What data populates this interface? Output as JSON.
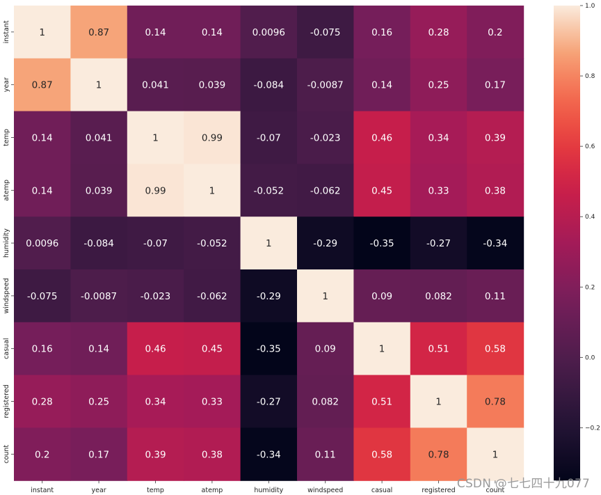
{
  "chart_data": {
    "type": "heatmap",
    "title": "",
    "xlabel": "",
    "ylabel": "",
    "row_labels": [
      "instant",
      "year",
      "temp",
      "atemp",
      "humidity",
      "windspeed",
      "casual",
      "registered",
      "count"
    ],
    "column_labels": [
      "instant",
      "year",
      "temp",
      "atemp",
      "humidity",
      "windspeed",
      "casual",
      "registered",
      "count"
    ],
    "values": [
      [
        1,
        0.87,
        0.14,
        0.14,
        0.0096,
        -0.075,
        0.16,
        0.28,
        0.2
      ],
      [
        0.87,
        1,
        0.041,
        0.039,
        -0.084,
        -0.0087,
        0.14,
        0.25,
        0.17
      ],
      [
        0.14,
        0.041,
        1,
        0.99,
        -0.07,
        -0.023,
        0.46,
        0.34,
        0.39
      ],
      [
        0.14,
        0.039,
        0.99,
        1,
        -0.052,
        -0.062,
        0.45,
        0.33,
        0.38
      ],
      [
        0.0096,
        -0.084,
        -0.07,
        -0.052,
        1,
        -0.29,
        -0.35,
        -0.27,
        -0.34
      ],
      [
        -0.075,
        -0.0087,
        -0.023,
        -0.062,
        -0.29,
        1,
        0.09,
        0.082,
        0.11
      ],
      [
        0.16,
        0.14,
        0.46,
        0.45,
        -0.35,
        0.09,
        1,
        0.51,
        0.58
      ],
      [
        0.28,
        0.25,
        0.34,
        0.33,
        -0.27,
        0.082,
        0.51,
        1,
        0.78
      ],
      [
        0.2,
        0.17,
        0.39,
        0.38,
        -0.34,
        0.11,
        0.58,
        0.78,
        1
      ]
    ],
    "cell_labels": [
      [
        "1",
        "0.87",
        "0.14",
        "0.14",
        "0.0096",
        "-0.075",
        "0.16",
        "0.28",
        "0.2"
      ],
      [
        "0.87",
        "1",
        "0.041",
        "0.039",
        "-0.084",
        "-0.0087",
        "0.14",
        "0.25",
        "0.17"
      ],
      [
        "0.14",
        "0.041",
        "1",
        "0.99",
        "-0.07",
        "-0.023",
        "0.46",
        "0.34",
        "0.39"
      ],
      [
        "0.14",
        "0.039",
        "0.99",
        "1",
        "-0.052",
        "-0.062",
        "0.45",
        "0.33",
        "0.38"
      ],
      [
        "0.0096",
        "-0.084",
        "-0.07",
        "-0.052",
        "1",
        "-0.29",
        "-0.35",
        "-0.27",
        "-0.34"
      ],
      [
        "-0.075",
        "-0.0087",
        "-0.023",
        "-0.062",
        "-0.29",
        "1",
        "0.09",
        "0.082",
        "0.11"
      ],
      [
        "0.16",
        "0.14",
        "0.46",
        "0.45",
        "-0.35",
        "0.09",
        "1",
        "0.51",
        "0.58"
      ],
      [
        "0.28",
        "0.25",
        "0.34",
        "0.33",
        "-0.27",
        "0.082",
        "0.51",
        "1",
        "0.78"
      ],
      [
        "0.2",
        "0.17",
        "0.39",
        "0.38",
        "-0.34",
        "0.11",
        "0.58",
        "0.78",
        "1"
      ]
    ],
    "colorbar": {
      "range": [
        -0.35,
        1.0
      ],
      "ticks": [
        1.0,
        0.8,
        0.6,
        0.4,
        0.2,
        0.0,
        -0.2
      ],
      "tick_labels": [
        "1.0",
        "0.8",
        "0.6",
        "0.4",
        "0.2",
        "0.0",
        "−0.2"
      ],
      "colormap": "rocket"
    },
    "grid": false,
    "legend": "colorbar-right"
  },
  "watermark": "CSDN @七七四十九077"
}
